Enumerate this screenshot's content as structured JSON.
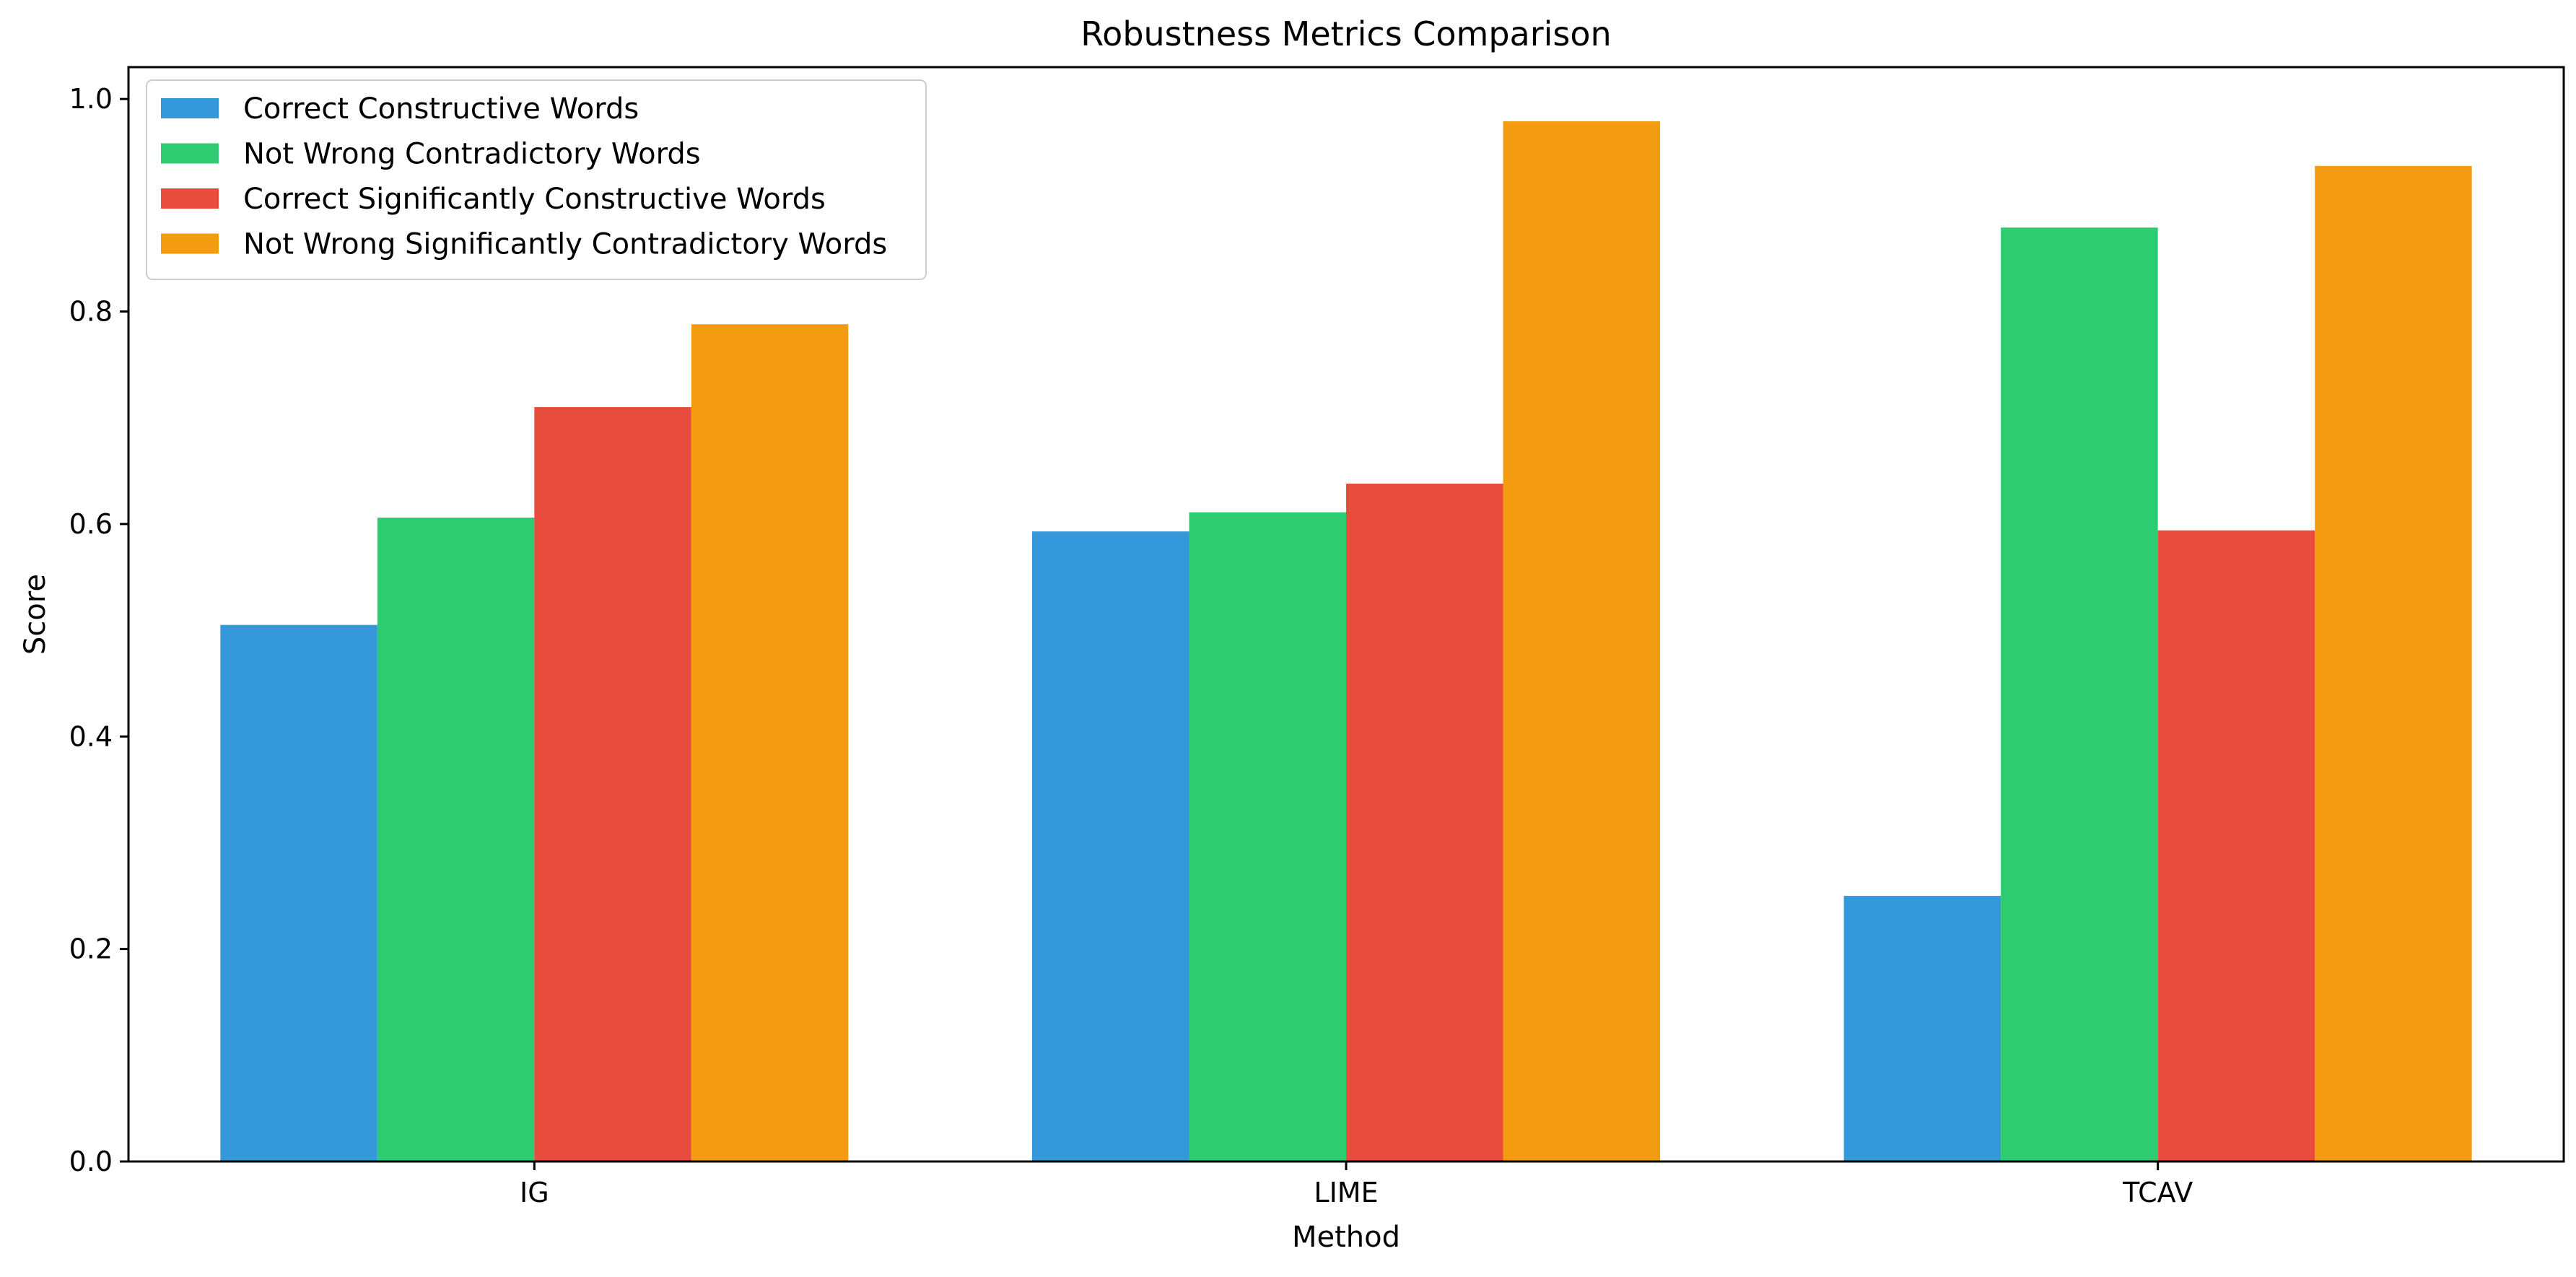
{
  "chart_data": {
    "type": "bar",
    "title": "Robustness Metrics Comparison",
    "xlabel": "Method",
    "ylabel": "Score",
    "categories": [
      "IG",
      "LIME",
      "TCAV"
    ],
    "ylim": [
      0,
      1.03
    ],
    "yticks": [
      "0.0",
      "0.2",
      "0.4",
      "0.6",
      "0.8",
      "1.0"
    ],
    "grid": false,
    "legend_position": "top-left",
    "series": [
      {
        "name": "Correct Constructive Words",
        "color": "#3498db",
        "values": [
          0.505,
          0.593,
          0.25
        ]
      },
      {
        "name": "Not Wrong Contradictory Words",
        "color": "#2ecc71",
        "values": [
          0.606,
          0.611,
          0.879
        ]
      },
      {
        "name": "Correct Significantly Constructive Words",
        "color": "#e74c3c",
        "values": [
          0.71,
          0.638,
          0.594
        ]
      },
      {
        "name": "Not Wrong Significantly Contradictory Words",
        "color": "#f39c12",
        "values": [
          0.788,
          0.979,
          0.937
        ]
      }
    ]
  }
}
